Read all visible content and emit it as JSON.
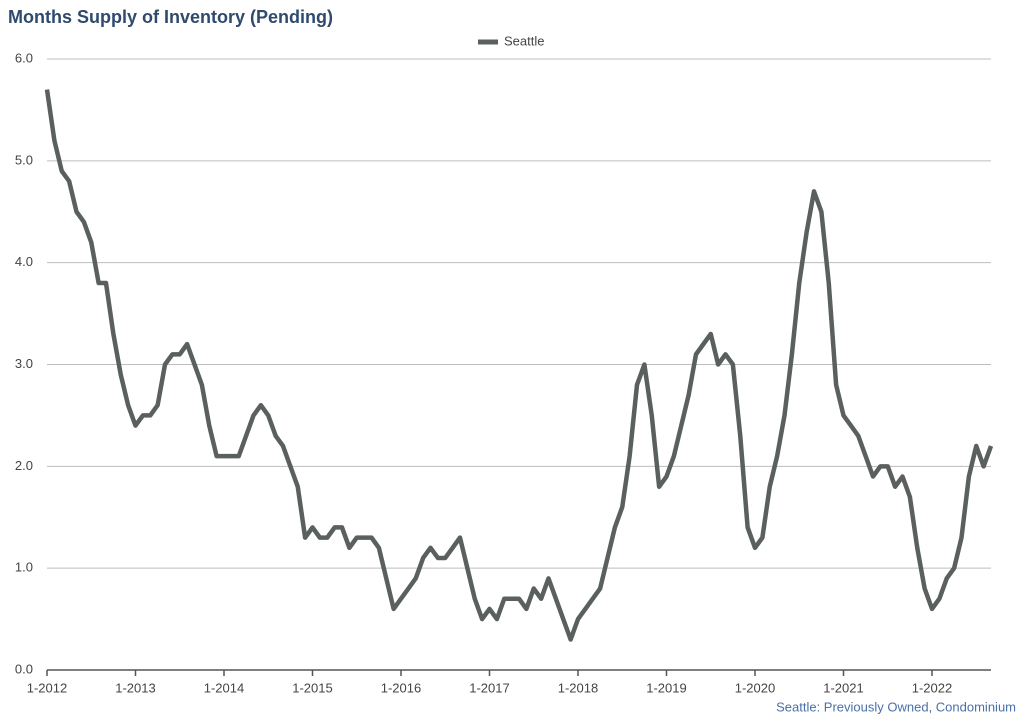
{
  "chart_data": {
    "type": "line",
    "title": "Months Supply of Inventory (Pending)",
    "source": "Seattle: Previously Owned, Condominium",
    "categories": [
      "1-2012",
      null,
      null,
      null,
      null,
      null,
      null,
      null,
      null,
      null,
      null,
      null,
      "1-2013",
      null,
      null,
      null,
      null,
      null,
      null,
      null,
      null,
      null,
      null,
      null,
      "1-2014",
      null,
      null,
      null,
      null,
      null,
      null,
      null,
      null,
      null,
      null,
      null,
      "1-2015",
      null,
      null,
      null,
      null,
      null,
      null,
      null,
      null,
      null,
      null,
      null,
      "1-2016",
      null,
      null,
      null,
      null,
      null,
      null,
      null,
      null,
      null,
      null,
      null,
      "1-2017",
      null,
      null,
      null,
      null,
      null,
      null,
      null,
      null,
      null,
      null,
      null,
      "1-2018",
      null,
      null,
      null,
      null,
      null,
      null,
      null,
      null,
      null,
      null,
      null,
      "1-2019",
      null,
      null,
      null,
      null,
      null,
      null,
      null,
      null,
      null,
      null,
      null,
      "1-2020",
      null,
      null,
      null,
      null,
      null,
      null,
      null,
      null,
      null,
      null,
      null,
      "1-2021",
      null,
      null,
      null,
      null,
      null,
      null,
      null,
      null,
      null,
      null,
      null,
      "1-2022",
      null,
      null,
      null,
      null,
      null,
      null,
      null,
      null
    ],
    "series": [
      {
        "name": "Seattle",
        "color": "#5a605e",
        "values": [
          5.7,
          5.2,
          4.9,
          4.8,
          4.5,
          4.4,
          4.2,
          3.8,
          3.8,
          3.3,
          2.9,
          2.6,
          2.4,
          2.5,
          2.5,
          2.6,
          3.0,
          3.1,
          3.1,
          3.2,
          3.0,
          2.8,
          2.4,
          2.1,
          2.1,
          2.1,
          2.1,
          2.3,
          2.5,
          2.6,
          2.5,
          2.3,
          2.2,
          2.0,
          1.8,
          1.3,
          1.4,
          1.3,
          1.3,
          1.4,
          1.4,
          1.2,
          1.3,
          1.3,
          1.3,
          1.2,
          0.9,
          0.6,
          0.7,
          0.8,
          0.9,
          1.1,
          1.2,
          1.1,
          1.1,
          1.2,
          1.3,
          1.0,
          0.7,
          0.5,
          0.6,
          0.5,
          0.7,
          0.7,
          0.7,
          0.6,
          0.8,
          0.7,
          0.9,
          0.7,
          0.5,
          0.3,
          0.5,
          0.6,
          0.7,
          0.8,
          1.1,
          1.4,
          1.6,
          2.1,
          2.8,
          3.0,
          2.5,
          1.8,
          1.9,
          2.1,
          2.4,
          2.7,
          3.1,
          3.2,
          3.3,
          3.0,
          3.1,
          3.0,
          2.3,
          1.4,
          1.2,
          1.3,
          1.8,
          2.1,
          2.5,
          3.1,
          3.8,
          4.3,
          4.7,
          4.5,
          3.8,
          2.8,
          2.5,
          2.4,
          2.3,
          2.1,
          1.9,
          2.0,
          2.0,
          1.8,
          1.9,
          1.7,
          1.2,
          0.8,
          0.6,
          0.7,
          0.9,
          1.0,
          1.3,
          1.9,
          2.2,
          2.0,
          2.2
        ]
      }
    ],
    "ylim": [
      0,
      6
    ],
    "yticks": [
      {
        "value": 0,
        "label": "0.0"
      },
      {
        "value": 1,
        "label": "1.0"
      },
      {
        "value": 2,
        "label": "2.0"
      },
      {
        "value": 3,
        "label": "3.0"
      },
      {
        "value": 4,
        "label": "4.0"
      },
      {
        "value": 5,
        "label": "5.0"
      },
      {
        "value": 6,
        "label": "6.0"
      }
    ],
    "grid": true
  }
}
